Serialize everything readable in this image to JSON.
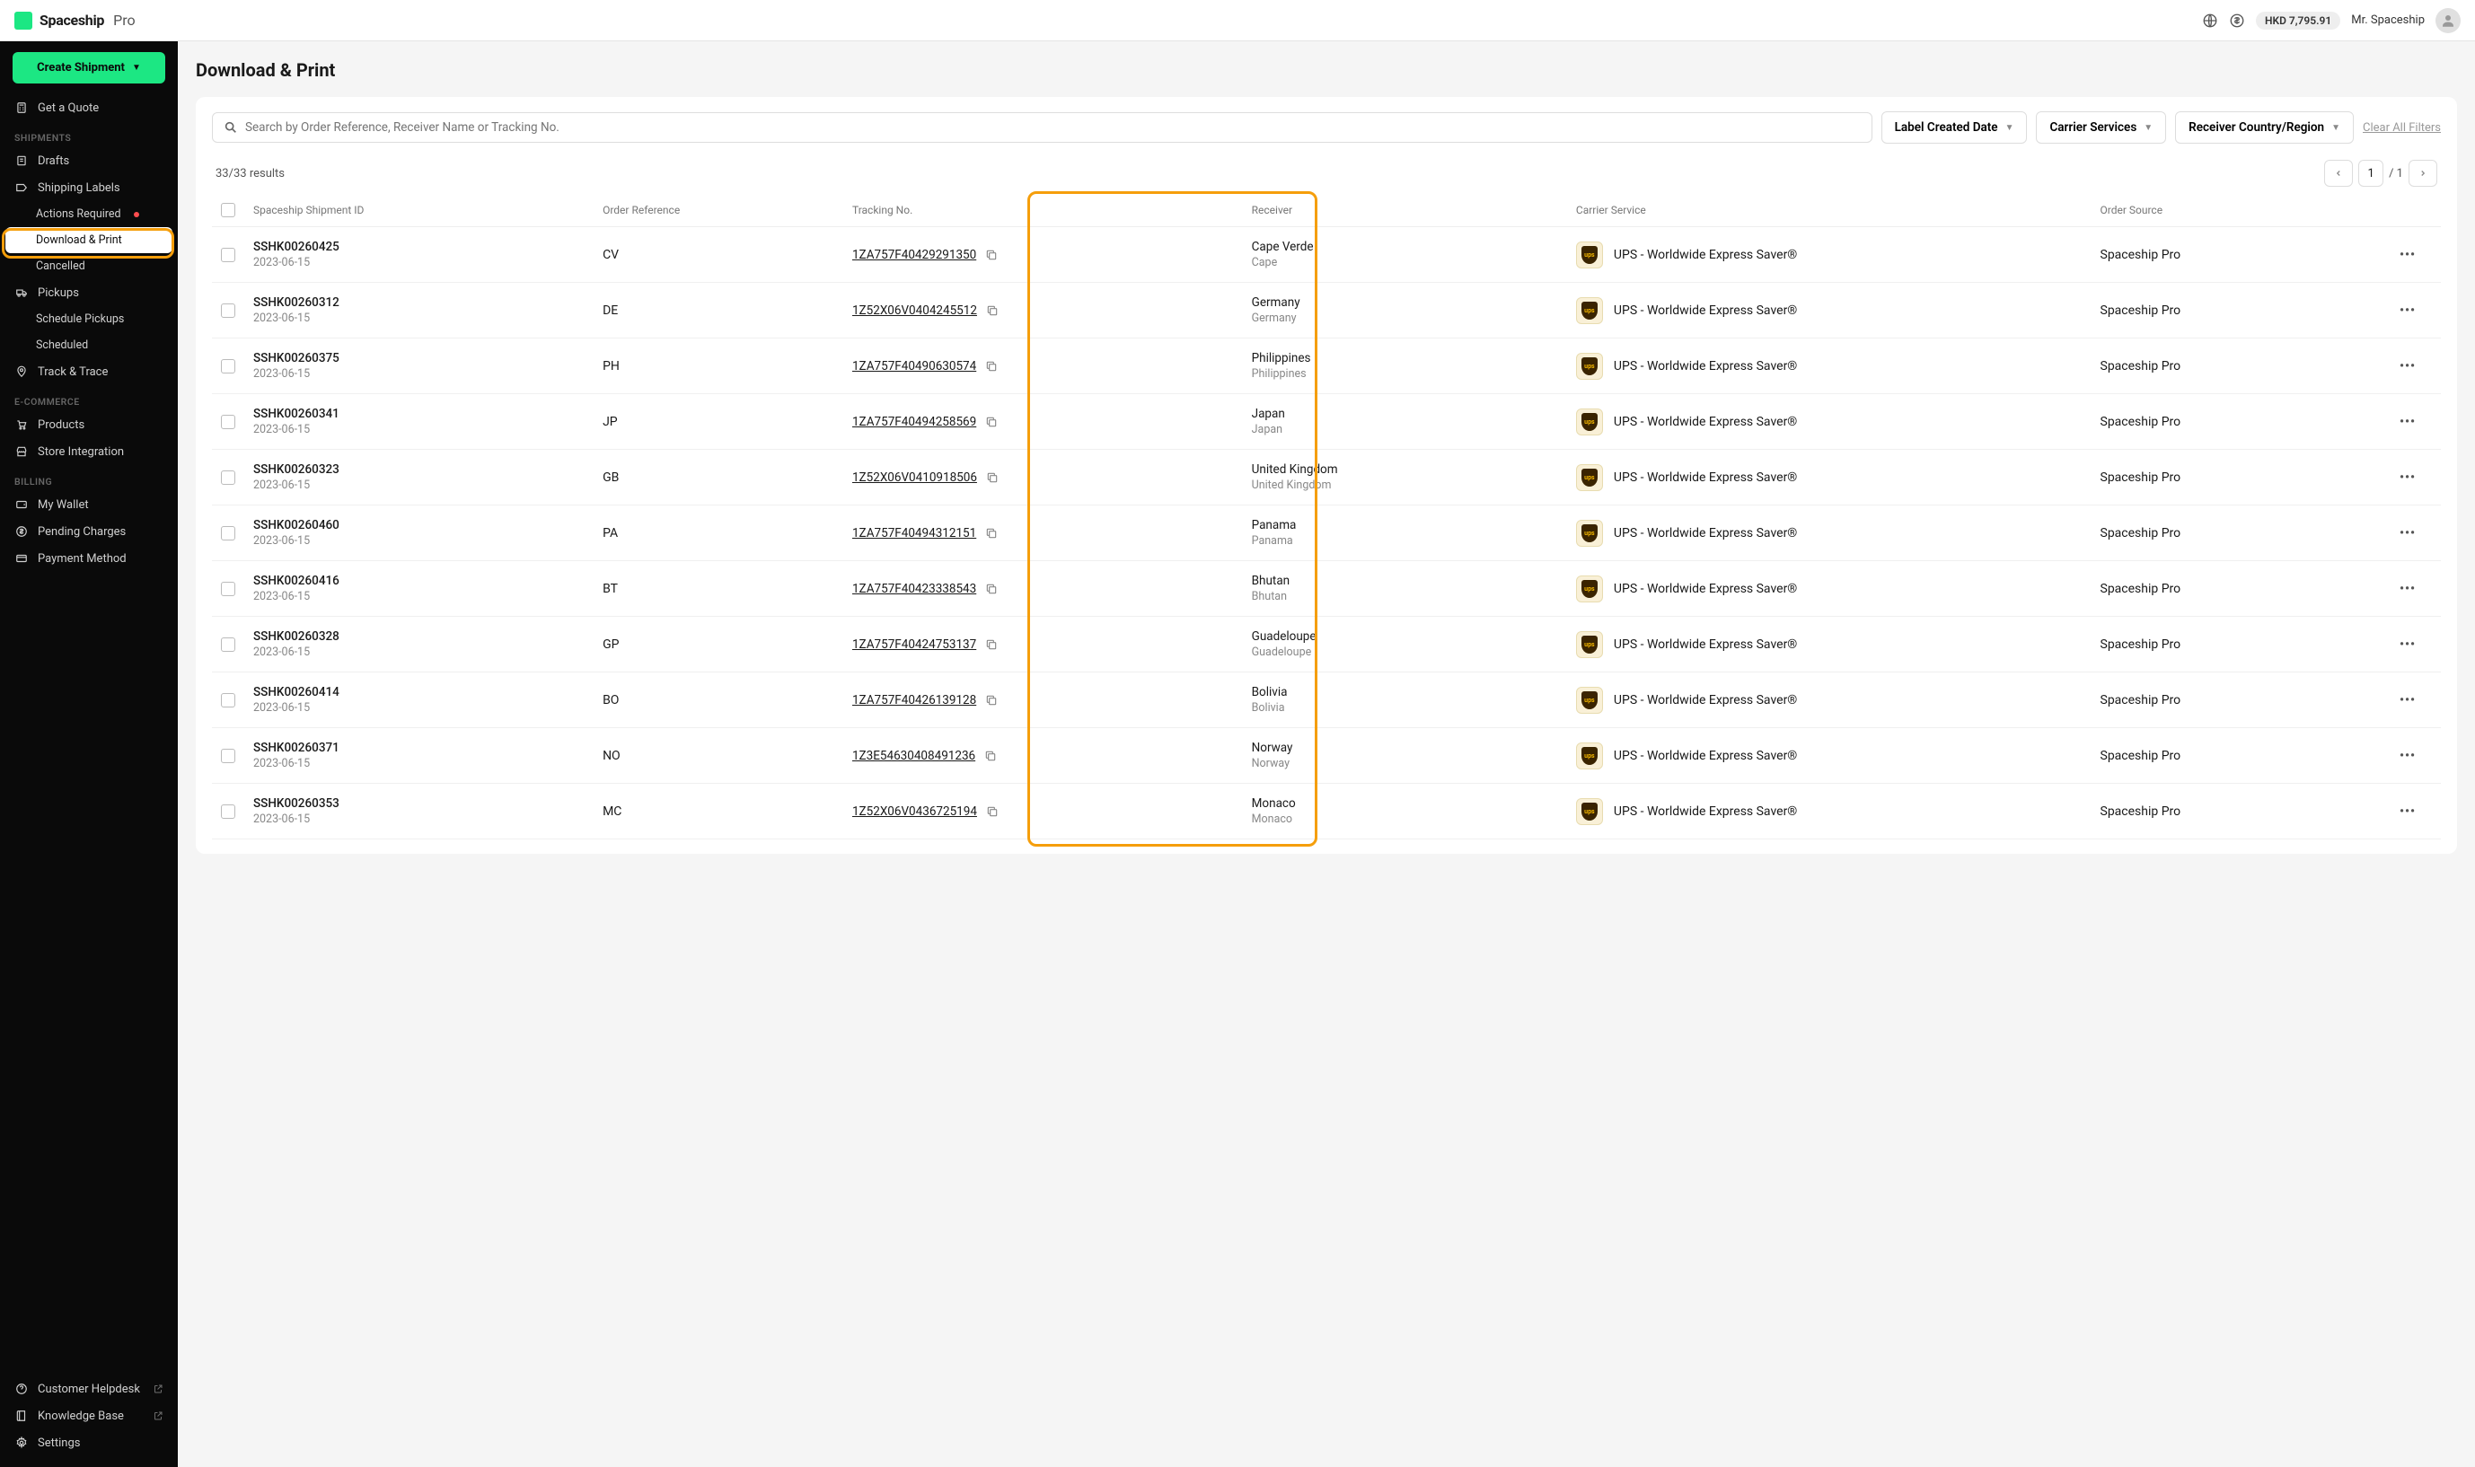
{
  "brand": {
    "name": "Spaceship",
    "tier": "Pro"
  },
  "topbar": {
    "balance": "HKD 7,795.91",
    "user": "Mr. Spaceship"
  },
  "sidebar": {
    "create_btn": "Create Shipment",
    "get_quote": "Get a Quote",
    "section_shipments": "SHIPMENTS",
    "drafts": "Drafts",
    "shipping_labels": "Shipping Labels",
    "actions_required": "Actions Required",
    "download_print": "Download & Print",
    "cancelled": "Cancelled",
    "pickups": "Pickups",
    "schedule_pickups": "Schedule Pickups",
    "scheduled": "Scheduled",
    "track_trace": "Track & Trace",
    "section_ecom": "E-COMMERCE",
    "products": "Products",
    "store_integration": "Store Integration",
    "section_billing": "BILLING",
    "my_wallet": "My Wallet",
    "pending_charges": "Pending Charges",
    "payment_method": "Payment Method",
    "helpdesk": "Customer Helpdesk",
    "knowledge_base": "Knowledge Base",
    "settings": "Settings"
  },
  "page": {
    "title": "Download & Print"
  },
  "filters": {
    "search_placeholder": "Search by Order Reference, Receiver Name or Tracking No.",
    "label_created": "Label Created Date",
    "carrier_services": "Carrier Services",
    "receiver_country": "Receiver Country/Region",
    "clear_all": "Clear All Filters"
  },
  "results": {
    "count": "33/33 results",
    "page": "1",
    "total": "/ 1"
  },
  "columns": {
    "shipment_id": "Spaceship Shipment ID",
    "order_ref": "Order Reference",
    "tracking": "Tracking No.",
    "receiver": "Receiver",
    "carrier": "Carrier Service",
    "order_source": "Order Source"
  },
  "rows": [
    {
      "id": "SSHK00260425",
      "date": "2023-06-15",
      "ref": "CV",
      "tracking": "1ZA757F40429291350",
      "country": "Cape Verde",
      "name": "Cape",
      "carrier": "UPS - Worldwide Express Saver®",
      "source": "Spaceship Pro"
    },
    {
      "id": "SSHK00260312",
      "date": "2023-06-15",
      "ref": "DE",
      "tracking": "1Z52X06V0404245512",
      "country": "Germany",
      "name": "Germany",
      "carrier": "UPS - Worldwide Express Saver®",
      "source": "Spaceship Pro"
    },
    {
      "id": "SSHK00260375",
      "date": "2023-06-15",
      "ref": "PH",
      "tracking": "1ZA757F40490630574",
      "country": "Philippines",
      "name": "Philippines",
      "carrier": "UPS - Worldwide Express Saver®",
      "source": "Spaceship Pro"
    },
    {
      "id": "SSHK00260341",
      "date": "2023-06-15",
      "ref": "JP",
      "tracking": "1ZA757F40494258569",
      "country": "Japan",
      "name": "Japan",
      "carrier": "UPS - Worldwide Express Saver®",
      "source": "Spaceship Pro"
    },
    {
      "id": "SSHK00260323",
      "date": "2023-06-15",
      "ref": "GB",
      "tracking": "1Z52X06V0410918506",
      "country": "United Kingdom",
      "name": "United Kingdom",
      "carrier": "UPS - Worldwide Express Saver®",
      "source": "Spaceship Pro"
    },
    {
      "id": "SSHK00260460",
      "date": "2023-06-15",
      "ref": "PA",
      "tracking": "1ZA757F40494312151",
      "country": "Panama",
      "name": "Panama",
      "carrier": "UPS - Worldwide Express Saver®",
      "source": "Spaceship Pro"
    },
    {
      "id": "SSHK00260416",
      "date": "2023-06-15",
      "ref": "BT",
      "tracking": "1ZA757F40423338543",
      "country": "Bhutan",
      "name": "Bhutan",
      "carrier": "UPS - Worldwide Express Saver®",
      "source": "Spaceship Pro"
    },
    {
      "id": "SSHK00260328",
      "date": "2023-06-15",
      "ref": "GP",
      "tracking": "1ZA757F40424753137",
      "country": "Guadeloupe",
      "name": "Guadeloupe",
      "carrier": "UPS - Worldwide Express Saver®",
      "source": "Spaceship Pro"
    },
    {
      "id": "SSHK00260414",
      "date": "2023-06-15",
      "ref": "BO",
      "tracking": "1ZA757F40426139128",
      "country": "Bolivia",
      "name": "Bolivia",
      "carrier": "UPS - Worldwide Express Saver®",
      "source": "Spaceship Pro"
    },
    {
      "id": "SSHK00260371",
      "date": "2023-06-15",
      "ref": "NO",
      "tracking": "1Z3E54630408491236",
      "country": "Norway",
      "name": "Norway",
      "carrier": "UPS - Worldwide Express Saver®",
      "source": "Spaceship Pro"
    },
    {
      "id": "SSHK00260353",
      "date": "2023-06-15",
      "ref": "MC",
      "tracking": "1Z52X06V0436725194",
      "country": "Monaco",
      "name": "Monaco",
      "carrier": "UPS - Worldwide Express Saver®",
      "source": "Spaceship Pro"
    }
  ],
  "colors": {
    "accent": "#1ce783",
    "highlight": "#f59e0b",
    "sidebar_bg": "#0a0a0a"
  }
}
